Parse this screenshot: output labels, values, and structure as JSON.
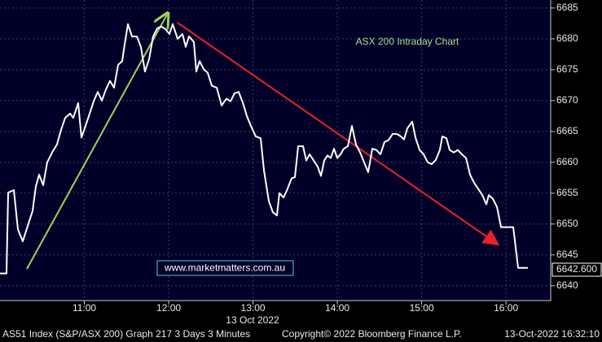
{
  "chart_data": {
    "type": "line",
    "annotation": "ASX 200 Intraday Chart",
    "watermark": "www.marketmatters.com.au",
    "date_label": "13 Oct 2022",
    "footer": [
      "AS51 Index (S&P/ASX 200) Graph 217 3 Days 3 Minutes",
      "Copyright© 2022 Bloomberg Finance L.P.",
      "13-Oct-2022 16:32:10"
    ],
    "last_price": {
      "value": 6642.6,
      "label": "6642.600"
    },
    "xlim": [
      10,
      16.53
    ],
    "ylim": [
      6637.6,
      6686.3
    ],
    "xticks": [
      {
        "value": 11,
        "label": "11:00"
      },
      {
        "value": 12,
        "label": "12:00"
      },
      {
        "value": 13,
        "label": "13:00"
      },
      {
        "value": 14,
        "label": "14:00"
      },
      {
        "value": 15,
        "label": "15:00"
      },
      {
        "value": 16,
        "label": "16:00"
      }
    ],
    "yticks": [
      6640,
      6645,
      6650,
      6655,
      6660,
      6665,
      6670,
      6675,
      6680,
      6685
    ],
    "grid": true,
    "x": [
      10.0,
      10.077,
      10.097,
      10.164,
      10.213,
      10.27,
      10.338,
      10.386,
      10.425,
      10.464,
      10.512,
      10.56,
      10.618,
      10.676,
      10.725,
      10.773,
      10.831,
      10.869,
      10.927,
      10.966,
      11.014,
      11.063,
      11.111,
      11.159,
      11.208,
      11.256,
      11.304,
      11.352,
      11.401,
      11.449,
      11.478,
      11.517,
      11.565,
      11.623,
      11.671,
      11.719,
      11.768,
      11.816,
      11.864,
      11.913,
      11.961,
      12.009,
      12.048,
      12.106,
      12.164,
      12.202,
      12.241,
      12.299,
      12.328,
      12.367,
      12.415,
      12.463,
      12.512,
      12.57,
      12.628,
      12.685,
      12.734,
      12.782,
      12.83,
      12.879,
      12.927,
      12.975,
      13.033,
      13.091,
      13.13,
      13.188,
      13.236,
      13.284,
      13.313,
      13.362,
      13.4,
      13.458,
      13.497,
      13.536,
      13.594,
      13.632,
      13.671,
      13.719,
      13.767,
      13.806,
      13.845,
      13.883,
      13.922,
      13.961,
      13.999,
      14.038,
      14.077,
      14.125,
      14.173,
      14.221,
      14.27,
      14.318,
      14.366,
      14.415,
      14.463,
      14.511,
      14.56,
      14.608,
      14.656,
      14.704,
      14.753,
      14.791,
      14.83,
      14.888,
      14.927,
      14.975,
      15.023,
      15.072,
      15.12,
      15.168,
      15.216,
      15.245,
      15.294,
      15.332,
      15.381,
      15.429,
      15.477,
      15.526,
      15.574,
      15.622,
      15.67,
      15.719,
      15.767,
      15.796,
      15.844,
      15.893,
      15.941,
      15.989,
      16.038,
      16.086,
      16.144,
      16.211,
      16.26
    ],
    "series": [
      {
        "color": "#ffffff",
        "values": [
          6642.0,
          6642.0,
          6655.1,
          6655.5,
          6649.1,
          6647.2,
          6650.1,
          6652.1,
          6656.1,
          6658.0,
          6656.3,
          6660.0,
          6661.6,
          6662.9,
          6665.3,
          6667.2,
          6667.9,
          6667.2,
          6669.6,
          6664.0,
          6665.9,
          6667.9,
          6669.9,
          6671.4,
          6670.0,
          6671.8,
          6673.2,
          6672.1,
          6675.8,
          6676.4,
          6679.1,
          6682.4,
          6680.4,
          6680.4,
          6678.7,
          6674.7,
          6676.7,
          6680.4,
          6681.7,
          6682.0,
          6681.6,
          6680.8,
          6682.4,
          6680.0,
          6680.8,
          6678.7,
          6680.4,
          6679.5,
          6674.7,
          6676.4,
          6675.1,
          6674.5,
          6672.4,
          6672.1,
          6669.2,
          6670.3,
          6669.9,
          6671.2,
          6671.4,
          6669.7,
          6667.5,
          6665.9,
          6664.2,
          6663.9,
          6658.7,
          6653.7,
          6651.9,
          6651.4,
          6655.0,
          6654.3,
          6655.4,
          6657.4,
          6657.6,
          6662.6,
          6662.6,
          6660.3,
          6661.3,
          6660.3,
          6659.3,
          6657.8,
          6660.3,
          6661.1,
          6660.7,
          6662.2,
          6660.7,
          6661.3,
          6662.2,
          6662.6,
          6665.9,
          6662.9,
          6661.6,
          6660.0,
          6658.4,
          6662.2,
          6662.0,
          6661.3,
          6663.3,
          6663.6,
          6664.6,
          6664.6,
          6664.2,
          6663.7,
          6665.5,
          6666.6,
          6664.0,
          6662.0,
          6661.3,
          6660.0,
          6659.7,
          6660.4,
          6662.0,
          6664.2,
          6663.9,
          6662.0,
          6661.6,
          6662.0,
          6661.3,
          6660.7,
          6658.0,
          6656.7,
          6655.7,
          6654.7,
          6653.2,
          6654.7,
          6654.1,
          6652.8,
          6649.5,
          6649.5,
          6649.5,
          6649.5,
          6642.9,
          6642.9,
          6642.9
        ]
      }
    ]
  }
}
